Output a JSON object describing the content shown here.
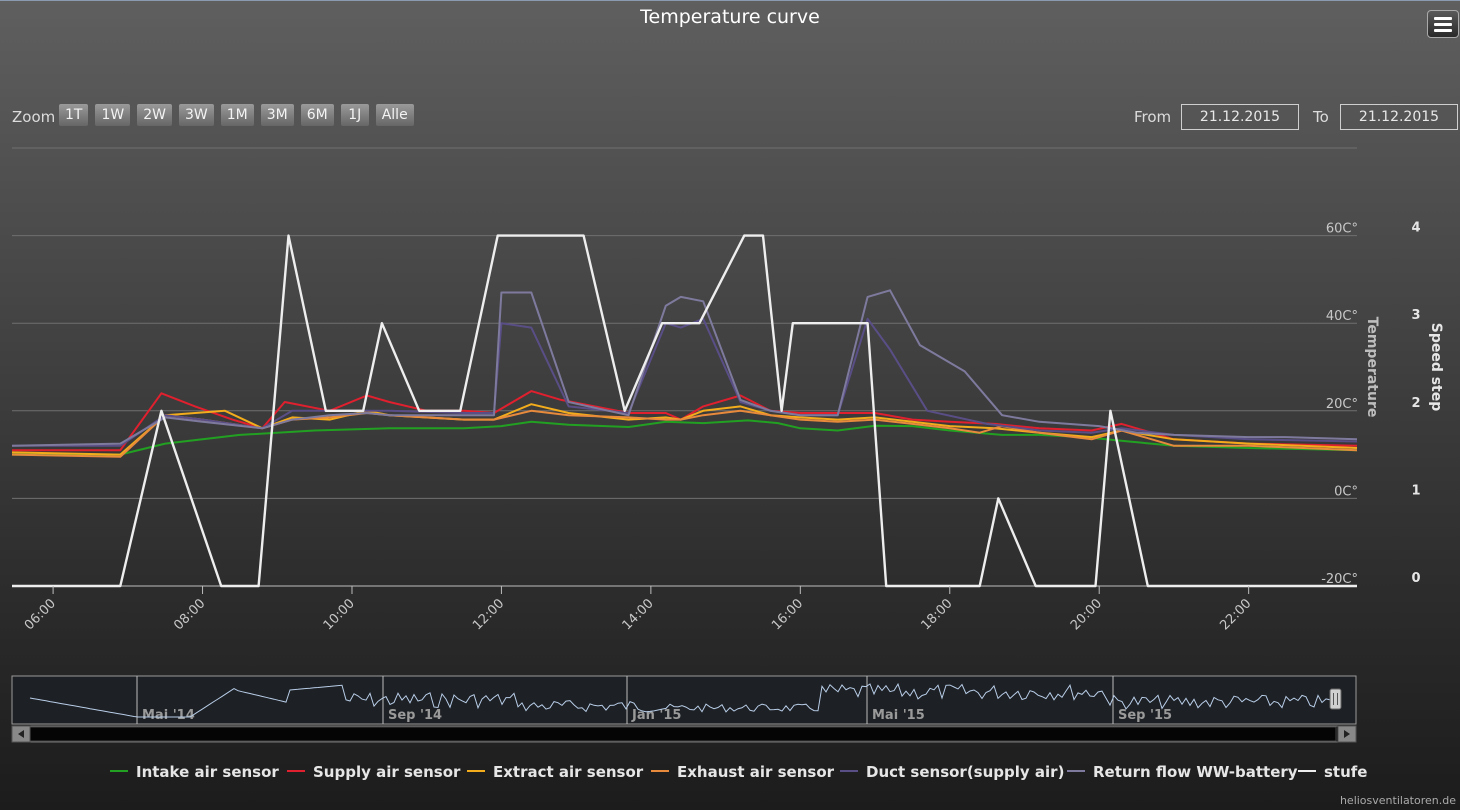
{
  "title": "Temperature curve",
  "toolbar": {
    "zoom_label": "Zoom",
    "zoom_buttons": [
      "1T",
      "1W",
      "2W",
      "3W",
      "1M",
      "3M",
      "6M",
      "1J",
      "Alle"
    ],
    "from_label": "From",
    "from_value": "21.12.2015",
    "to_label": "To",
    "to_value": "21.12.2015"
  },
  "watermark": "heliosventilatoren.de",
  "colors": {
    "intake": "#22a022",
    "supply": "#e0202e",
    "extract": "#f2ac1c",
    "exhaust": "#e88a3c",
    "duct": "#5a4e86",
    "return": "#7e7a9e",
    "stufe": "#eeeeee"
  },
  "chart_data": {
    "type": "line",
    "x_axis": {
      "unit": "hours",
      "range": [
        5.45,
        23.45
      ],
      "ticks": [
        {
          "value": 6,
          "label": "06:00"
        },
        {
          "value": 8,
          "label": "08:00"
        },
        {
          "value": 10,
          "label": "10:00"
        },
        {
          "value": 12,
          "label": "12:00"
        },
        {
          "value": 14,
          "label": "14:00"
        },
        {
          "value": 16,
          "label": "16:00"
        },
        {
          "value": 18,
          "label": "18:00"
        },
        {
          "value": 20,
          "label": "20:00"
        },
        {
          "value": 22,
          "label": "22:00"
        }
      ]
    },
    "y_axis_temperature": {
      "label": "Temperature",
      "range": [
        -20,
        80
      ],
      "ticks": [
        {
          "value": -20,
          "label": "-20C°"
        },
        {
          "value": 0,
          "label": "0C°"
        },
        {
          "value": 20,
          "label": "20C°"
        },
        {
          "value": 40,
          "label": "40C°"
        },
        {
          "value": 60,
          "label": "60C°"
        }
      ]
    },
    "y_axis_speed": {
      "label": "Speed step",
      "range": [
        0,
        5
      ],
      "ticks": [
        {
          "value": 0,
          "label": "0"
        },
        {
          "value": 1,
          "label": "1"
        },
        {
          "value": 2,
          "label": "2"
        },
        {
          "value": 3,
          "label": "3"
        },
        {
          "value": 4,
          "label": "4"
        }
      ]
    },
    "grid": true,
    "legend_position": "bottom",
    "series": [
      {
        "name": "Intake air sensor",
        "color_key": "intake",
        "axis": "temperature",
        "points": [
          [
            5.45,
            10
          ],
          [
            6.9,
            10
          ],
          [
            7.5,
            12.5
          ],
          [
            8.5,
            14.5
          ],
          [
            9.5,
            15.5
          ],
          [
            10.5,
            16
          ],
          [
            11.5,
            16
          ],
          [
            12.0,
            16.5
          ],
          [
            12.4,
            17.5
          ],
          [
            12.9,
            16.8
          ],
          [
            13.7,
            16.3
          ],
          [
            14.2,
            17.5
          ],
          [
            14.7,
            17.2
          ],
          [
            15.3,
            17.8
          ],
          [
            15.7,
            17.2
          ],
          [
            16.0,
            16
          ],
          [
            16.5,
            15.5
          ],
          [
            17.0,
            16.6
          ],
          [
            17.5,
            16.5
          ],
          [
            18.0,
            15.5
          ],
          [
            18.7,
            14.5
          ],
          [
            19.2,
            14.5
          ],
          [
            19.8,
            14
          ],
          [
            20.4,
            13
          ],
          [
            21.0,
            12
          ],
          [
            22.0,
            11.5
          ],
          [
            23.45,
            11
          ]
        ]
      },
      {
        "name": "Supply air sensor",
        "color_key": "supply",
        "axis": "temperature",
        "points": [
          [
            5.45,
            11
          ],
          [
            6.9,
            11
          ],
          [
            7.45,
            24
          ],
          [
            7.9,
            21
          ],
          [
            8.4,
            18
          ],
          [
            8.8,
            16
          ],
          [
            9.1,
            22
          ],
          [
            9.7,
            20
          ],
          [
            10.2,
            23.5
          ],
          [
            10.5,
            22
          ],
          [
            11.0,
            20
          ],
          [
            11.5,
            20
          ],
          [
            11.9,
            19.5
          ],
          [
            12.4,
            24.5
          ],
          [
            12.8,
            22.5
          ],
          [
            13.7,
            19.5
          ],
          [
            14.2,
            19.5
          ],
          [
            14.4,
            18
          ],
          [
            14.7,
            21
          ],
          [
            15.2,
            23.5
          ],
          [
            15.6,
            20
          ],
          [
            16.0,
            19.5
          ],
          [
            16.5,
            19.5
          ],
          [
            17.0,
            19.5
          ],
          [
            17.5,
            18
          ],
          [
            18.0,
            17.5
          ],
          [
            18.6,
            17
          ],
          [
            19.2,
            16
          ],
          [
            19.9,
            15.5
          ],
          [
            20.3,
            17
          ],
          [
            21.0,
            13.5
          ],
          [
            22.0,
            12.5
          ],
          [
            23.45,
            12
          ]
        ]
      },
      {
        "name": "Extract air sensor",
        "color_key": "extract",
        "axis": "temperature",
        "points": [
          [
            5.45,
            10.5
          ],
          [
            6.9,
            10
          ],
          [
            7.5,
            19
          ],
          [
            8.3,
            20
          ],
          [
            8.8,
            16
          ],
          [
            9.2,
            18.5
          ],
          [
            9.7,
            18
          ],
          [
            10.2,
            20
          ],
          [
            10.5,
            19
          ],
          [
            11.5,
            18
          ],
          [
            11.9,
            18
          ],
          [
            12.4,
            21.5
          ],
          [
            12.9,
            19.5
          ],
          [
            13.7,
            18
          ],
          [
            14.2,
            18.5
          ],
          [
            14.4,
            18
          ],
          [
            14.7,
            20
          ],
          [
            15.2,
            21
          ],
          [
            15.6,
            19
          ],
          [
            16.0,
            18.5
          ],
          [
            16.5,
            18
          ],
          [
            17.0,
            18.5
          ],
          [
            17.5,
            17.5
          ],
          [
            18.0,
            16.5
          ],
          [
            18.6,
            16
          ],
          [
            19.2,
            15
          ],
          [
            19.9,
            14
          ],
          [
            20.3,
            15.5
          ],
          [
            21.0,
            13.5
          ],
          [
            22.0,
            12.5
          ],
          [
            23.45,
            11.5
          ]
        ]
      },
      {
        "name": "Exhaust air sensor",
        "color_key": "exhaust",
        "axis": "temperature",
        "points": [
          [
            5.45,
            10
          ],
          [
            6.9,
            9.5
          ],
          [
            7.5,
            19
          ],
          [
            8.0,
            18
          ],
          [
            8.8,
            16
          ],
          [
            9.2,
            18
          ],
          [
            9.7,
            18.5
          ],
          [
            10.2,
            19.5
          ],
          [
            10.5,
            19
          ],
          [
            11.5,
            18
          ],
          [
            11.9,
            18
          ],
          [
            12.4,
            20
          ],
          [
            12.9,
            19
          ],
          [
            13.7,
            18.5
          ],
          [
            14.2,
            18
          ],
          [
            14.4,
            18
          ],
          [
            14.7,
            19
          ],
          [
            15.2,
            20
          ],
          [
            15.6,
            19
          ],
          [
            16.0,
            18
          ],
          [
            16.5,
            17.5
          ],
          [
            17.0,
            18
          ],
          [
            17.5,
            17
          ],
          [
            18.0,
            16
          ],
          [
            18.4,
            15
          ],
          [
            18.7,
            16.5
          ],
          [
            19.2,
            15
          ],
          [
            19.9,
            13.5
          ],
          [
            20.3,
            15.5
          ],
          [
            21.0,
            12
          ],
          [
            22.0,
            12
          ],
          [
            23.45,
            11
          ]
        ]
      },
      {
        "name": "Duct sensor(supply air)",
        "color_key": "duct",
        "axis": "temperature",
        "points": [
          [
            5.45,
            12
          ],
          [
            6.9,
            12
          ],
          [
            7.5,
            19
          ],
          [
            8.0,
            18
          ],
          [
            8.8,
            16
          ],
          [
            9.2,
            20
          ],
          [
            9.7,
            20
          ],
          [
            10.2,
            20
          ],
          [
            10.5,
            20
          ],
          [
            11.5,
            19.5
          ],
          [
            11.9,
            19.5
          ],
          [
            12.0,
            40
          ],
          [
            12.4,
            39
          ],
          [
            12.9,
            21
          ],
          [
            13.7,
            19.5
          ],
          [
            14.2,
            40
          ],
          [
            14.4,
            39
          ],
          [
            14.7,
            41
          ],
          [
            15.2,
            22
          ],
          [
            15.6,
            20
          ],
          [
            16.0,
            19
          ],
          [
            16.5,
            19
          ],
          [
            16.9,
            41
          ],
          [
            17.2,
            34
          ],
          [
            17.7,
            20
          ],
          [
            18.5,
            17
          ],
          [
            19.2,
            15.5
          ],
          [
            19.9,
            15
          ],
          [
            20.3,
            16
          ],
          [
            21.0,
            14.5
          ],
          [
            22.0,
            13.5
          ],
          [
            23.45,
            13
          ]
        ]
      },
      {
        "name": "Return flow WW-battery",
        "color_key": "return",
        "axis": "temperature",
        "points": [
          [
            5.45,
            12
          ],
          [
            6.9,
            12.5
          ],
          [
            7.5,
            18.5
          ],
          [
            8.0,
            17.5
          ],
          [
            8.8,
            16
          ],
          [
            9.2,
            18
          ],
          [
            9.7,
            19
          ],
          [
            10.2,
            19.5
          ],
          [
            10.5,
            19
          ],
          [
            11.5,
            19
          ],
          [
            11.9,
            19
          ],
          [
            12.0,
            47
          ],
          [
            12.4,
            47
          ],
          [
            12.9,
            22
          ],
          [
            13.7,
            19
          ],
          [
            14.2,
            44
          ],
          [
            14.4,
            46
          ],
          [
            14.7,
            45
          ],
          [
            15.2,
            22.5
          ],
          [
            15.6,
            20
          ],
          [
            16.0,
            19
          ],
          [
            16.5,
            19
          ],
          [
            16.9,
            46
          ],
          [
            17.2,
            47.5
          ],
          [
            17.6,
            35
          ],
          [
            18.2,
            29
          ],
          [
            18.7,
            19
          ],
          [
            19.2,
            17.5
          ],
          [
            20.0,
            16.5
          ],
          [
            20.5,
            15
          ],
          [
            21.0,
            14.5
          ],
          [
            22.0,
            14
          ],
          [
            22.5,
            14
          ],
          [
            23.45,
            13.5
          ]
        ]
      },
      {
        "name": "stufe",
        "color_key": "stufe",
        "axis": "speed",
        "points": [
          [
            5.45,
            0
          ],
          [
            6.9,
            0
          ],
          [
            7.45,
            2
          ],
          [
            8.25,
            0
          ],
          [
            8.75,
            0
          ],
          [
            9.15,
            4
          ],
          [
            9.65,
            2
          ],
          [
            10.15,
            2
          ],
          [
            10.4,
            3
          ],
          [
            10.9,
            2
          ],
          [
            11.45,
            2
          ],
          [
            11.95,
            4
          ],
          [
            13.1,
            4
          ],
          [
            13.65,
            2
          ],
          [
            14.15,
            3
          ],
          [
            14.65,
            3
          ],
          [
            15.25,
            4
          ],
          [
            15.5,
            4
          ],
          [
            15.75,
            2
          ],
          [
            15.9,
            3
          ],
          [
            16.9,
            3
          ],
          [
            17.15,
            0
          ],
          [
            18.4,
            0
          ],
          [
            18.65,
            1
          ],
          [
            19.15,
            0
          ],
          [
            19.95,
            0
          ],
          [
            20.15,
            2
          ],
          [
            20.65,
            0
          ],
          [
            23.45,
            0
          ]
        ]
      }
    ]
  },
  "navigator": {
    "labels": [
      "Mai '14",
      "Sep '14",
      "Jan '15",
      "Mai '15",
      "Sep '15"
    ]
  }
}
